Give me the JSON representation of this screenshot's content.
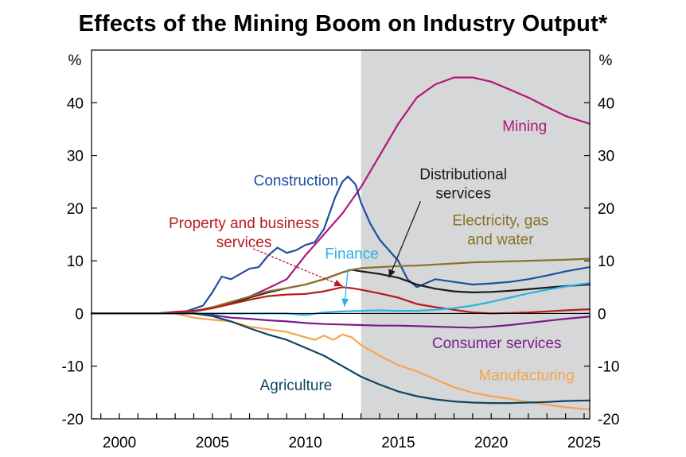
{
  "chart_data": {
    "type": "line",
    "title": "Effects of the Mining Boom on Industry Output*",
    "y_unit_left": "%",
    "y_unit_right": "%",
    "xlim": [
      1998.5,
      2025.3
    ],
    "ylim": [
      -20,
      50
    ],
    "x_ticks": [
      2000,
      2005,
      2010,
      2015,
      2020,
      2025
    ],
    "y_ticks": [
      -20,
      -10,
      0,
      10,
      20,
      30,
      40
    ],
    "shaded_region": {
      "from": 2013,
      "to": 2025.3,
      "color": "#d6d7d9"
    },
    "grid": false,
    "series": [
      {
        "name": "Mining",
        "color": "#b0187a",
        "label_lines": [
          "Mining"
        ],
        "label_x": 2021.8,
        "label_y": 34.6,
        "points": [
          [
            1998.5,
            0
          ],
          [
            2002,
            0
          ],
          [
            2004,
            0.5
          ],
          [
            2005,
            1
          ],
          [
            2006,
            2
          ],
          [
            2007,
            3.2
          ],
          [
            2008,
            4.8
          ],
          [
            2009,
            6.5
          ],
          [
            2010,
            11
          ],
          [
            2011,
            15
          ],
          [
            2012,
            19
          ],
          [
            2013,
            24
          ],
          [
            2014,
            30
          ],
          [
            2015,
            36
          ],
          [
            2016,
            41
          ],
          [
            2017,
            43.5
          ],
          [
            2018,
            44.8
          ],
          [
            2019,
            44.8
          ],
          [
            2020,
            44
          ],
          [
            2021,
            42.5
          ],
          [
            2022,
            41
          ],
          [
            2023,
            39.2
          ],
          [
            2024,
            37.5
          ],
          [
            2025.3,
            36
          ]
        ]
      },
      {
        "name": "Construction",
        "color": "#1d4fa0",
        "label_lines": [
          "Construction"
        ],
        "label_x": 2009.5,
        "label_y": 24.3,
        "points": [
          [
            1998.5,
            0
          ],
          [
            2002,
            0
          ],
          [
            2003.5,
            0.3
          ],
          [
            2004.5,
            1.5
          ],
          [
            2005,
            4
          ],
          [
            2005.5,
            7
          ],
          [
            2006,
            6.5
          ],
          [
            2006.5,
            7.5
          ],
          [
            2007,
            8.5
          ],
          [
            2007.5,
            8.8
          ],
          [
            2008,
            11
          ],
          [
            2008.5,
            12.5
          ],
          [
            2009,
            11.5
          ],
          [
            2009.5,
            12
          ],
          [
            2010,
            13
          ],
          [
            2010.5,
            13.5
          ],
          [
            2011,
            16
          ],
          [
            2011.3,
            19
          ],
          [
            2011.6,
            22
          ],
          [
            2012,
            25
          ],
          [
            2012.3,
            26
          ],
          [
            2012.7,
            24.5
          ],
          [
            2013,
            21
          ],
          [
            2013.5,
            17
          ],
          [
            2014,
            14
          ],
          [
            2014.5,
            12
          ],
          [
            2015,
            10
          ],
          [
            2015.5,
            6.5
          ],
          [
            2016,
            5
          ],
          [
            2017,
            6.5
          ],
          [
            2018,
            6
          ],
          [
            2019,
            5.5
          ],
          [
            2020,
            5.7
          ],
          [
            2021,
            6
          ],
          [
            2022,
            6.5
          ],
          [
            2023,
            7.2
          ],
          [
            2024,
            8
          ],
          [
            2025.3,
            8.8
          ]
        ]
      },
      {
        "name": "Distributional services",
        "color": "#1b1b1b",
        "label_lines": [
          "Distributional",
          "services"
        ],
        "label_x": 2018.5,
        "label_y": 25.5,
        "points": [
          [
            1998.5,
            0
          ],
          [
            2002,
            0
          ],
          [
            2004,
            0.4
          ],
          [
            2005,
            1
          ],
          [
            2006,
            2
          ],
          [
            2007,
            3
          ],
          [
            2008,
            4
          ],
          [
            2009,
            4.8
          ],
          [
            2010,
            5.5
          ],
          [
            2011,
            6.5
          ],
          [
            2012,
            7.8
          ],
          [
            2012.5,
            8.3
          ],
          [
            2013,
            8
          ],
          [
            2014,
            7.5
          ],
          [
            2015,
            6.8
          ],
          [
            2016,
            5.5
          ],
          [
            2017,
            4.7
          ],
          [
            2018,
            4.2
          ],
          [
            2019,
            4
          ],
          [
            2020,
            4.1
          ],
          [
            2021,
            4.3
          ],
          [
            2022,
            4.6
          ],
          [
            2023,
            4.9
          ],
          [
            2024,
            5.2
          ],
          [
            2025.3,
            5.5
          ]
        ]
      },
      {
        "name": "Electricity, gas and water",
        "color": "#8a7327",
        "label_lines": [
          "Electricity, gas",
          "and water"
        ],
        "label_x": 2020.5,
        "label_y": 16.7,
        "points": [
          [
            1998.5,
            0
          ],
          [
            2002,
            0
          ],
          [
            2004,
            0.4
          ],
          [
            2005,
            1.2
          ],
          [
            2006,
            2.2
          ],
          [
            2007,
            3.2
          ],
          [
            2008,
            4.2
          ],
          [
            2009,
            4.8
          ],
          [
            2010,
            5.5
          ],
          [
            2011,
            6.5
          ],
          [
            2012,
            7.8
          ],
          [
            2012.5,
            8.3
          ],
          [
            2013,
            8.6
          ],
          [
            2014,
            8.8
          ],
          [
            2015,
            9
          ],
          [
            2016,
            9.1
          ],
          [
            2017,
            9.3
          ],
          [
            2018,
            9.5
          ],
          [
            2019,
            9.7
          ],
          [
            2020,
            9.8
          ],
          [
            2021,
            9.9
          ],
          [
            2022,
            10
          ],
          [
            2023,
            10.1
          ],
          [
            2024,
            10.2
          ],
          [
            2025.3,
            10.4
          ]
        ]
      },
      {
        "name": "Property and business services",
        "color": "#b81b1e",
        "label_lines": [
          "Property and business",
          "services"
        ],
        "label_x": 2006.7,
        "label_y": 16.2,
        "points": [
          [
            1998.5,
            0
          ],
          [
            2002,
            0
          ],
          [
            2003,
            0.3
          ],
          [
            2004,
            0.5
          ],
          [
            2005,
            1
          ],
          [
            2006,
            1.8
          ],
          [
            2007,
            2.6
          ],
          [
            2008,
            3.3
          ],
          [
            2009,
            3.6
          ],
          [
            2010,
            3.7
          ],
          [
            2011,
            4.2
          ],
          [
            2012,
            5
          ],
          [
            2012.5,
            4.8
          ],
          [
            2013,
            4.5
          ],
          [
            2014,
            3.8
          ],
          [
            2015,
            3
          ],
          [
            2016,
            1.8
          ],
          [
            2017,
            1.2
          ],
          [
            2018,
            0.7
          ],
          [
            2019,
            0.2
          ],
          [
            2020,
            0
          ],
          [
            2021,
            0.1
          ],
          [
            2022,
            0.2
          ],
          [
            2023,
            0.4
          ],
          [
            2024,
            0.6
          ],
          [
            2025.3,
            0.8
          ]
        ]
      },
      {
        "name": "Finance",
        "color": "#2ab1e4",
        "label_lines": [
          "Finance"
        ],
        "label_x": 2012.5,
        "label_y": 10.4,
        "points": [
          [
            1998.5,
            0
          ],
          [
            2009,
            0
          ],
          [
            2010,
            -0.3
          ],
          [
            2011,
            0.2
          ],
          [
            2012,
            0.4
          ],
          [
            2013,
            0.5
          ],
          [
            2014,
            0.6
          ],
          [
            2015,
            0.5
          ],
          [
            2016,
            0.5
          ],
          [
            2017,
            0.7
          ],
          [
            2018,
            1
          ],
          [
            2019,
            1.5
          ],
          [
            2020,
            2.2
          ],
          [
            2021,
            3
          ],
          [
            2022,
            3.8
          ],
          [
            2023,
            4.5
          ],
          [
            2024,
            5.1
          ],
          [
            2025.3,
            5.8
          ]
        ]
      },
      {
        "name": "Consumer services",
        "color": "#7a1b8c",
        "label_lines": [
          "Consumer services"
        ],
        "label_x": 2020.3,
        "label_y": -6.6,
        "points": [
          [
            1998.5,
            0
          ],
          [
            2004,
            0
          ],
          [
            2005,
            -0.3
          ],
          [
            2006,
            -0.8
          ],
          [
            2007,
            -1
          ],
          [
            2008,
            -1.3
          ],
          [
            2009,
            -1.5
          ],
          [
            2010,
            -1.8
          ],
          [
            2011,
            -2
          ],
          [
            2012,
            -2.1
          ],
          [
            2013,
            -2.2
          ],
          [
            2014,
            -2.3
          ],
          [
            2015,
            -2.3
          ],
          [
            2016,
            -2.4
          ],
          [
            2017,
            -2.5
          ],
          [
            2018,
            -2.6
          ],
          [
            2019,
            -2.7
          ],
          [
            2020,
            -2.5
          ],
          [
            2021,
            -2.2
          ],
          [
            2022,
            -1.8
          ],
          [
            2023,
            -1.4
          ],
          [
            2024,
            -1
          ],
          [
            2025.3,
            -0.6
          ]
        ]
      },
      {
        "name": "Manufacturing",
        "color": "#f5a54d",
        "label_lines": [
          "Manufacturing"
        ],
        "label_x": 2021.9,
        "label_y": -12.7,
        "points": [
          [
            1998.5,
            0
          ],
          [
            2003,
            0
          ],
          [
            2004,
            -0.8
          ],
          [
            2005,
            -1.2
          ],
          [
            2006,
            -1.5
          ],
          [
            2007,
            -2.5
          ],
          [
            2008,
            -3
          ],
          [
            2009,
            -3.5
          ],
          [
            2010,
            -4.5
          ],
          [
            2010.5,
            -5
          ],
          [
            2011,
            -4.2
          ],
          [
            2011.5,
            -5
          ],
          [
            2012,
            -4
          ],
          [
            2012.5,
            -4.5
          ],
          [
            2013,
            -6
          ],
          [
            2014,
            -8
          ],
          [
            2015,
            -9.8
          ],
          [
            2016,
            -11
          ],
          [
            2017,
            -12.5
          ],
          [
            2018,
            -14
          ],
          [
            2019,
            -15
          ],
          [
            2020,
            -15.7
          ],
          [
            2021,
            -16.2
          ],
          [
            2022,
            -16.8
          ],
          [
            2023,
            -17.3
          ],
          [
            2024,
            -17.8
          ],
          [
            2025.3,
            -18.2
          ]
        ]
      },
      {
        "name": "Agriculture",
        "color": "#0f4564",
        "label_lines": [
          "Agriculture"
        ],
        "label_x": 2009.5,
        "label_y": -14.6,
        "points": [
          [
            1998.5,
            0
          ],
          [
            2004,
            0
          ],
          [
            2005,
            -0.5
          ],
          [
            2006,
            -1.5
          ],
          [
            2007,
            -2.8
          ],
          [
            2008,
            -4
          ],
          [
            2009,
            -5
          ],
          [
            2010,
            -6.5
          ],
          [
            2011,
            -8
          ],
          [
            2012,
            -10
          ],
          [
            2013,
            -12
          ],
          [
            2014,
            -13.5
          ],
          [
            2015,
            -14.8
          ],
          [
            2016,
            -15.7
          ],
          [
            2017,
            -16.3
          ],
          [
            2018,
            -16.7
          ],
          [
            2019,
            -16.9
          ],
          [
            2020,
            -17
          ],
          [
            2021,
            -17
          ],
          [
            2022,
            -16.9
          ],
          [
            2023,
            -16.8
          ],
          [
            2024,
            -16.6
          ],
          [
            2025.3,
            -16.5
          ]
        ]
      }
    ],
    "annotations": [
      {
        "target": "Property and business services",
        "color": "#b81b1e",
        "from": [
          2007.2,
          12.3
        ],
        "to": [
          2012,
          5.2
        ],
        "dashed": true
      },
      {
        "target": "Finance",
        "color": "#2ab1e4",
        "from": [
          2012.3,
          8.5
        ],
        "to": [
          2012.1,
          1.3
        ],
        "dashed": false
      },
      {
        "target": "Distributional services",
        "color": "#1b1b1b",
        "from": [
          2016.2,
          21.3
        ],
        "to": [
          2014.5,
          6.8
        ],
        "dashed": false
      }
    ]
  }
}
